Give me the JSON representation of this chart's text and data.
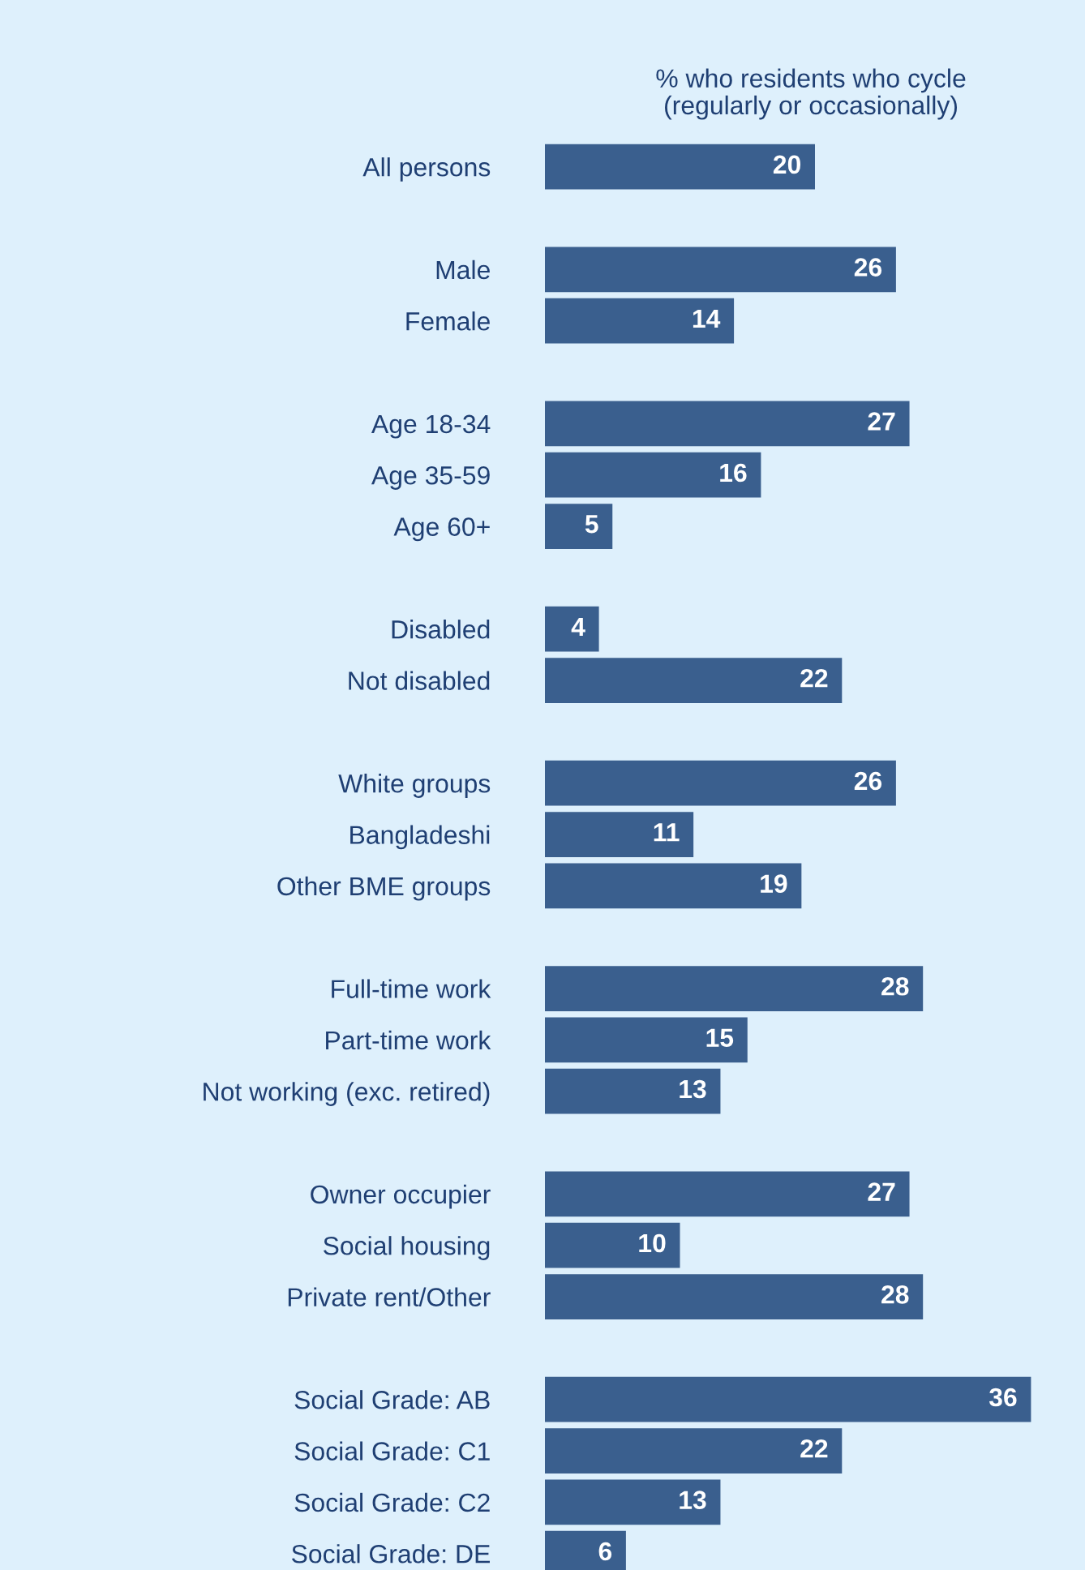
{
  "chart_data": {
    "type": "bar",
    "orientation": "horizontal",
    "title": "% who residents who cycle\n(regularly or occasionally)",
    "categories": [
      "All persons",
      null,
      "Male",
      "Female",
      null,
      "Age 18-34",
      "Age 35-59",
      "Age 60+",
      null,
      "Disabled",
      "Not disabled",
      null,
      "White groups",
      "Bangladeshi",
      "Other BME groups",
      null,
      "Full-time work",
      "Part-time work",
      "Not working (exc. retired)",
      null,
      "Owner occupier",
      "Social housing",
      "Private rent/Other",
      null,
      "Social Grade: AB",
      "Social Grade: C1",
      "Social Grade: C2",
      "Social Grade: DE"
    ],
    "values": [
      20,
      null,
      26,
      14,
      null,
      27,
      16,
      5,
      null,
      4,
      22,
      null,
      26,
      11,
      19,
      null,
      28,
      15,
      13,
      null,
      27,
      10,
      28,
      null,
      36,
      22,
      13,
      6
    ],
    "color": "#3a5f8e",
    "xlim": [
      0,
      40
    ],
    "data_labels": true,
    "tick_labels": "y",
    "grid": false,
    "legend": false
  }
}
